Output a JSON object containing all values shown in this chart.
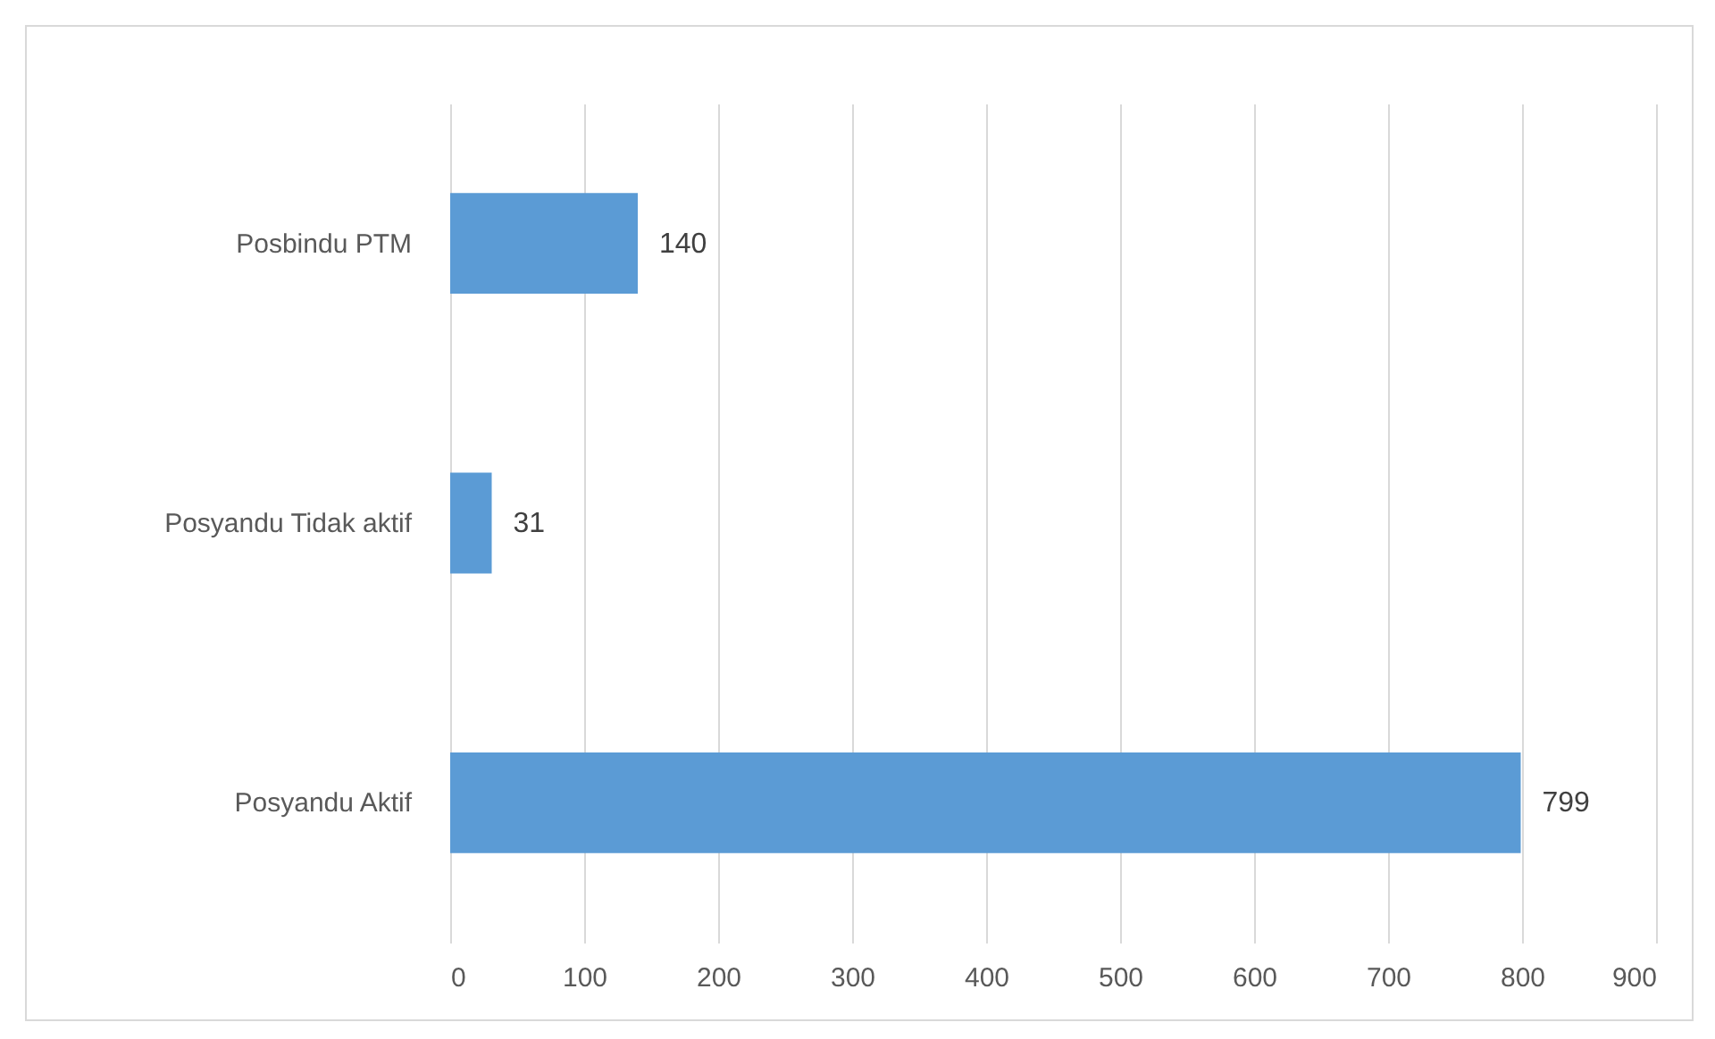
{
  "chart_data": {
    "type": "bar",
    "orientation": "horizontal",
    "categories": [
      "Posbindu PTM",
      "Posyandu Tidak aktif",
      "Posyandu Aktif"
    ],
    "values": [
      140,
      31,
      799
    ],
    "color": "#5b9bd5",
    "xlim": [
      0,
      900
    ],
    "xticks": [
      0,
      100,
      200,
      300,
      400,
      500,
      600,
      700,
      800,
      900
    ],
    "grid": "x",
    "data_labels": true
  }
}
